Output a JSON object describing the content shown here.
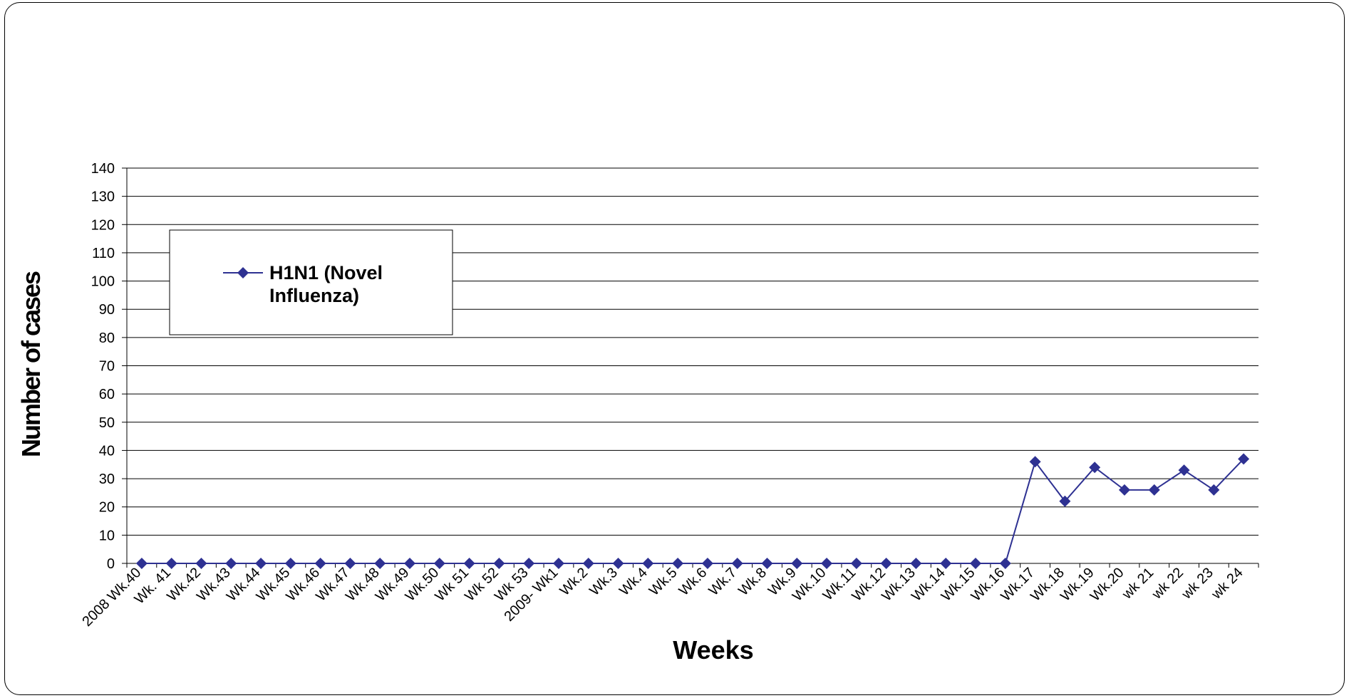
{
  "chart_data": {
    "type": "line",
    "title": "",
    "xlabel": "Weeks",
    "ylabel": "Number of cases",
    "ylim": [
      0,
      140
    ],
    "ytick_step": 10,
    "grid": true,
    "legend": {
      "position": "top-left",
      "entries": [
        "H1N1 (Novel",
        "Influenza)"
      ]
    },
    "categories": [
      "2008 Wk.40",
      "Wk. 41",
      "Wk.42",
      "Wk.43",
      "Wk.44",
      "Wk.45",
      "Wk.46",
      "Wk.47",
      "Wk.48",
      "Wk.49",
      "Wk.50",
      "Wk 51",
      "Wk 52",
      "Wk 53",
      "2009- Wk1",
      "Wk.2",
      "Wk.3",
      "Wk.4",
      "Wk.5",
      "Wk.6",
      "Wk.7",
      "Wk.8",
      "Wk.9",
      "Wk.10",
      "Wk.11",
      "Wk.12",
      "Wk.13",
      "Wk.14",
      "Wk.15",
      "Wk.16",
      "Wk.17",
      "Wk.18",
      "Wk.19",
      "Wk.20",
      "wk 21",
      "wk 22",
      "wk 23",
      "wk 24"
    ],
    "series": [
      {
        "name": "H1N1 (Novel Influenza)",
        "color": "#2e3192",
        "marker": "diamond",
        "values": [
          0,
          0,
          0,
          0,
          0,
          0,
          0,
          0,
          0,
          0,
          0,
          0,
          0,
          0,
          0,
          0,
          0,
          0,
          0,
          0,
          0,
          0,
          0,
          0,
          0,
          0,
          0,
          0,
          0,
          0,
          36,
          22,
          34,
          26,
          26,
          33,
          26,
          37
        ]
      }
    ]
  }
}
